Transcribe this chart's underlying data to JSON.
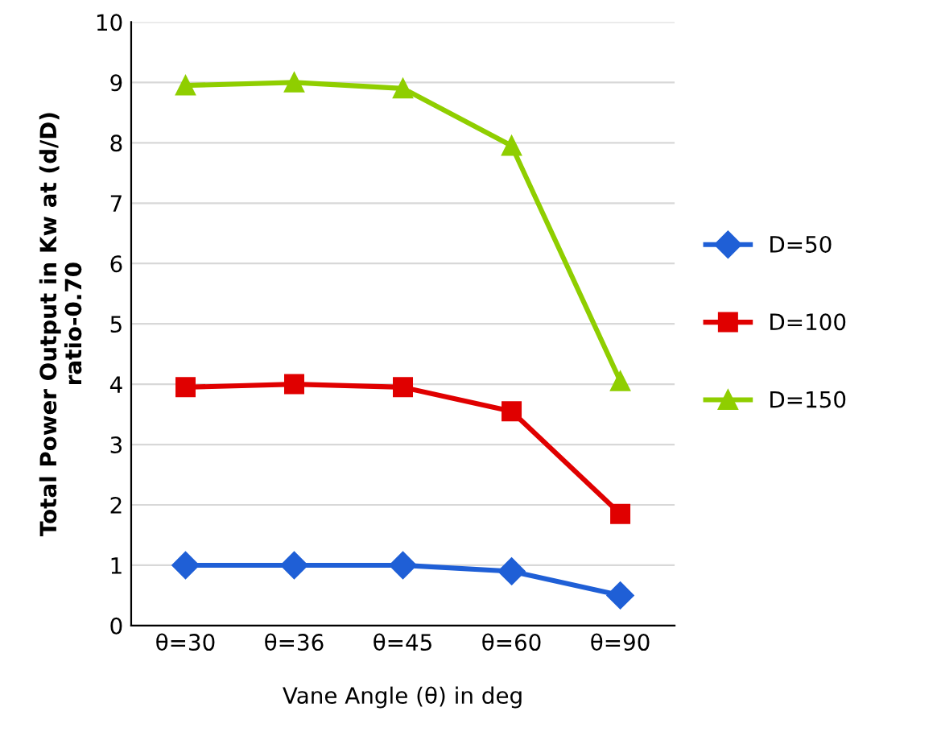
{
  "chart_data": {
    "type": "line",
    "xlabel": "Vane Angle (θ) in deg",
    "ylabel": "Total Power Output in Kw at (d/D)\nratio-0.70",
    "categories": [
      "θ=30",
      "θ=36",
      "θ=45",
      "θ=60",
      "θ=90"
    ],
    "series": [
      {
        "name": "D=50",
        "color": "#1f5fd6",
        "marker": "diamond",
        "values": [
          1.0,
          1.0,
          1.0,
          0.9,
          0.5
        ]
      },
      {
        "name": "D=100",
        "color": "#e00000",
        "marker": "square",
        "values": [
          3.95,
          4.0,
          3.95,
          3.55,
          1.85
        ]
      },
      {
        "name": "D=150",
        "color": "#8fce00",
        "marker": "triangle",
        "values": [
          8.95,
          9.0,
          8.9,
          7.95,
          4.05
        ]
      }
    ],
    "ylim": [
      0,
      10
    ],
    "yticks": [
      0,
      1,
      2,
      3,
      4,
      5,
      6,
      7,
      8,
      9,
      10
    ],
    "grid": "y",
    "legend": "right",
    "line_style": "solid"
  }
}
